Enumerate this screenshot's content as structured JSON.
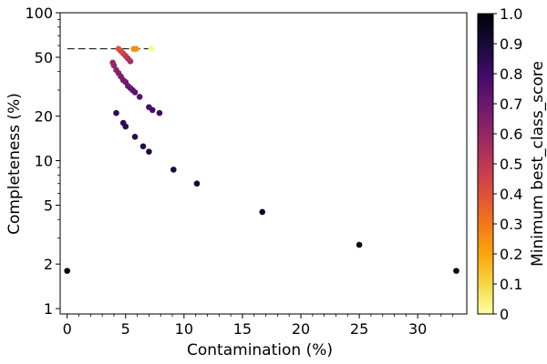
{
  "chart_data": {
    "type": "scatter",
    "xlabel": "Contamination (%)",
    "ylabel": "Completeness (%)",
    "xlim": [
      -0.6,
      34.2
    ],
    "ylim": [
      0.92,
      100
    ],
    "yscale": "log",
    "grid": false,
    "xticks": [
      0,
      5,
      10,
      15,
      20,
      25,
      30
    ],
    "xtick_labels": [
      "0",
      "5",
      "10",
      "15",
      "20",
      "25",
      "30"
    ],
    "yticks": [
      1,
      2,
      5,
      10,
      20,
      50,
      100
    ],
    "ytick_labels": [
      "1",
      "2",
      "5",
      "10",
      "20",
      "50",
      "100"
    ],
    "colorbar": {
      "label": "Minimum best_class_score",
      "range": [
        0,
        1
      ],
      "ticks": [
        0,
        0.1,
        0.2,
        0.3,
        0.4,
        0.5,
        0.6,
        0.7,
        0.8,
        0.9,
        1.0
      ],
      "tick_labels": [
        "0",
        "0.1",
        "0.2",
        "0.3",
        "0.4",
        "0.5",
        "0.6",
        "0.7",
        "0.8",
        "0.9",
        "1.0"
      ],
      "colormap": "inferno_r"
    },
    "reference_line": {
      "y": 57,
      "x_range": [
        0,
        7.3
      ],
      "style": "dashed",
      "color": "#000000"
    },
    "points": [
      {
        "x": 7.2,
        "y": 57,
        "score": 0.02
      },
      {
        "x": 5.9,
        "y": 57,
        "score": 0.25
      },
      {
        "x": 5.7,
        "y": 57,
        "score": 0.26
      },
      {
        "x": 4.4,
        "y": 57,
        "score": 0.4
      },
      {
        "x": 4.6,
        "y": 55,
        "score": 0.44
      },
      {
        "x": 4.8,
        "y": 53,
        "score": 0.47
      },
      {
        "x": 5.0,
        "y": 51,
        "score": 0.5
      },
      {
        "x": 5.2,
        "y": 49,
        "score": 0.53
      },
      {
        "x": 5.4,
        "y": 47,
        "score": 0.56
      },
      {
        "x": 3.9,
        "y": 46,
        "score": 0.58
      },
      {
        "x": 4.0,
        "y": 44,
        "score": 0.6
      },
      {
        "x": 4.2,
        "y": 41,
        "score": 0.62
      },
      {
        "x": 4.4,
        "y": 39,
        "score": 0.64
      },
      {
        "x": 4.6,
        "y": 37,
        "score": 0.66
      },
      {
        "x": 4.8,
        "y": 35,
        "score": 0.67
      },
      {
        "x": 5.0,
        "y": 34,
        "score": 0.69
      },
      {
        "x": 5.2,
        "y": 32,
        "score": 0.7
      },
      {
        "x": 5.4,
        "y": 31,
        "score": 0.71
      },
      {
        "x": 5.6,
        "y": 30,
        "score": 0.73
      },
      {
        "x": 5.8,
        "y": 29,
        "score": 0.74
      },
      {
        "x": 6.2,
        "y": 27,
        "score": 0.75
      },
      {
        "x": 7.0,
        "y": 23,
        "score": 0.78
      },
      {
        "x": 7.3,
        "y": 22,
        "score": 0.8
      },
      {
        "x": 7.9,
        "y": 21,
        "score": 0.81
      },
      {
        "x": 4.2,
        "y": 21,
        "score": 0.84
      },
      {
        "x": 4.8,
        "y": 18,
        "score": 0.84
      },
      {
        "x": 5.0,
        "y": 17,
        "score": 0.85
      },
      {
        "x": 5.8,
        "y": 14.5,
        "score": 0.86
      },
      {
        "x": 6.5,
        "y": 12.5,
        "score": 0.87
      },
      {
        "x": 7.0,
        "y": 11.5,
        "score": 0.88
      },
      {
        "x": 9.1,
        "y": 8.7,
        "score": 0.9
      },
      {
        "x": 11.1,
        "y": 7.0,
        "score": 0.92
      },
      {
        "x": 16.7,
        "y": 4.5,
        "score": 0.94
      },
      {
        "x": 25.0,
        "y": 2.7,
        "score": 0.96
      },
      {
        "x": 33.3,
        "y": 1.8,
        "score": 0.97
      },
      {
        "x": 0.0,
        "y": 1.8,
        "score": 0.98
      }
    ]
  }
}
